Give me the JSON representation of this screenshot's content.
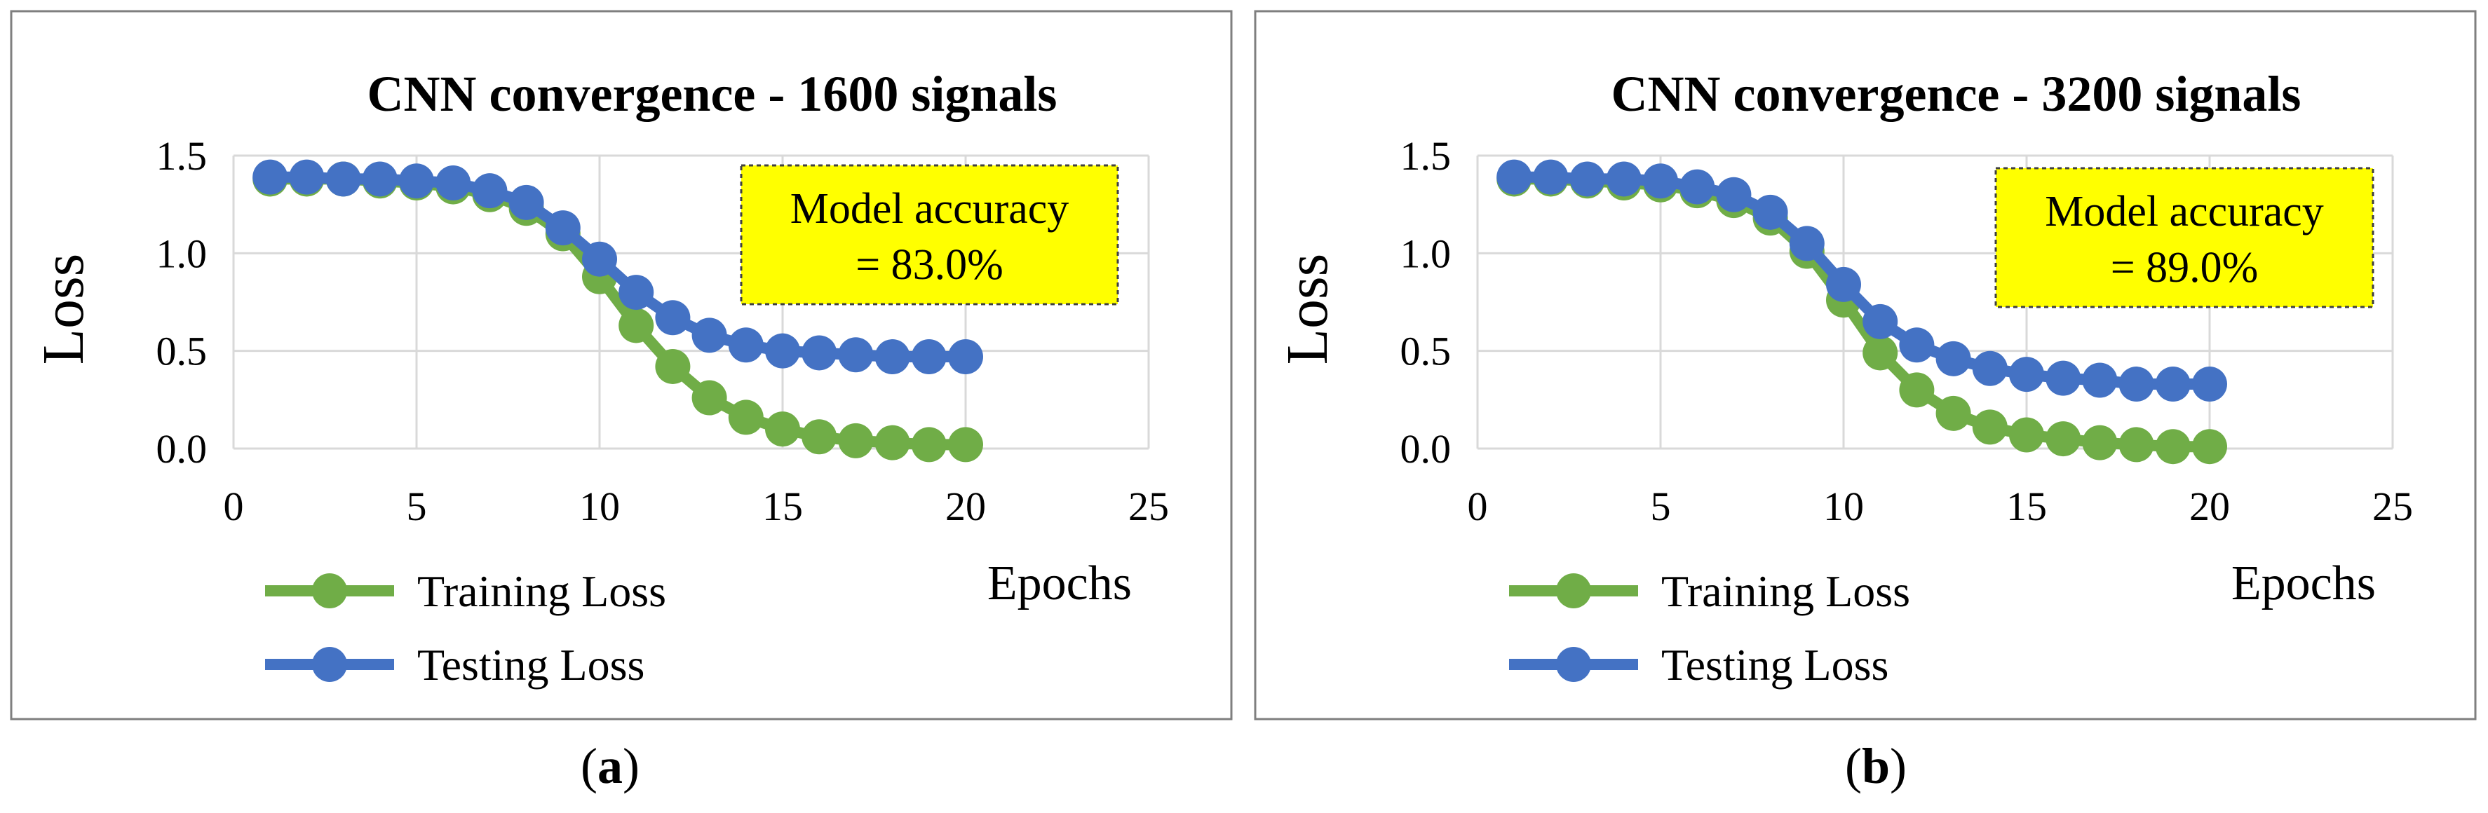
{
  "chart_data": [
    {
      "type": "line",
      "title": "CNN convergence - 1600 signals",
      "xlabel": "Epochs",
      "ylabel": "Loss",
      "xlim": [
        0,
        25
      ],
      "ylim": [
        0,
        1.5
      ],
      "x_ticks": [
        "0",
        "5",
        "10",
        "15",
        "20",
        "25"
      ],
      "y_ticks": [
        "0.0",
        "0.5",
        "1.0",
        "1.5"
      ],
      "grid": true,
      "legend_position": "bottom-left",
      "annotation": [
        "Model accuracy",
        "= 83.0%"
      ],
      "x": [
        1,
        2,
        3,
        4,
        5,
        6,
        7,
        8,
        9,
        10,
        11,
        12,
        13,
        14,
        15,
        16,
        17,
        18,
        19,
        20
      ],
      "series": [
        {
          "name": "Training Loss",
          "color": "#70AD47",
          "values": [
            1.38,
            1.38,
            1.38,
            1.37,
            1.36,
            1.34,
            1.3,
            1.23,
            1.1,
            0.88,
            0.63,
            0.42,
            0.26,
            0.16,
            0.1,
            0.06,
            0.04,
            0.03,
            0.02,
            0.02
          ]
        },
        {
          "name": "Testing Loss",
          "color": "#4472C4",
          "values": [
            1.39,
            1.39,
            1.38,
            1.38,
            1.37,
            1.36,
            1.32,
            1.26,
            1.13,
            0.97,
            0.8,
            0.67,
            0.58,
            0.53,
            0.5,
            0.49,
            0.48,
            0.47,
            0.47,
            0.47
          ]
        }
      ]
    },
    {
      "type": "line",
      "title": "CNN convergence - 3200 signals",
      "xlabel": "Epochs",
      "ylabel": "Loss",
      "xlim": [
        0,
        25
      ],
      "ylim": [
        0,
        1.5
      ],
      "x_ticks": [
        "0",
        "5",
        "10",
        "15",
        "20",
        "25"
      ],
      "y_ticks": [
        "0.0",
        "0.5",
        "1.0",
        "1.5"
      ],
      "grid": true,
      "legend_position": "bottom-left",
      "annotation": [
        "Model accuracy",
        "= 89.0%"
      ],
      "x": [
        1,
        2,
        3,
        4,
        5,
        6,
        7,
        8,
        9,
        10,
        11,
        12,
        13,
        14,
        15,
        16,
        17,
        18,
        19,
        20
      ],
      "series": [
        {
          "name": "Training Loss",
          "color": "#70AD47",
          "values": [
            1.38,
            1.38,
            1.37,
            1.36,
            1.35,
            1.32,
            1.27,
            1.18,
            1.01,
            0.76,
            0.49,
            0.3,
            0.18,
            0.11,
            0.07,
            0.05,
            0.03,
            0.02,
            0.01,
            0.01
          ]
        },
        {
          "name": "Testing Loss",
          "color": "#4472C4",
          "values": [
            1.39,
            1.39,
            1.38,
            1.38,
            1.37,
            1.34,
            1.3,
            1.21,
            1.05,
            0.84,
            0.65,
            0.53,
            0.46,
            0.41,
            0.38,
            0.36,
            0.35,
            0.33,
            0.33,
            0.33
          ]
        }
      ]
    }
  ],
  "captions": [
    {
      "open": "(",
      "letter": "a",
      "close": ")"
    },
    {
      "open": "(",
      "letter": "b",
      "close": ")"
    }
  ]
}
